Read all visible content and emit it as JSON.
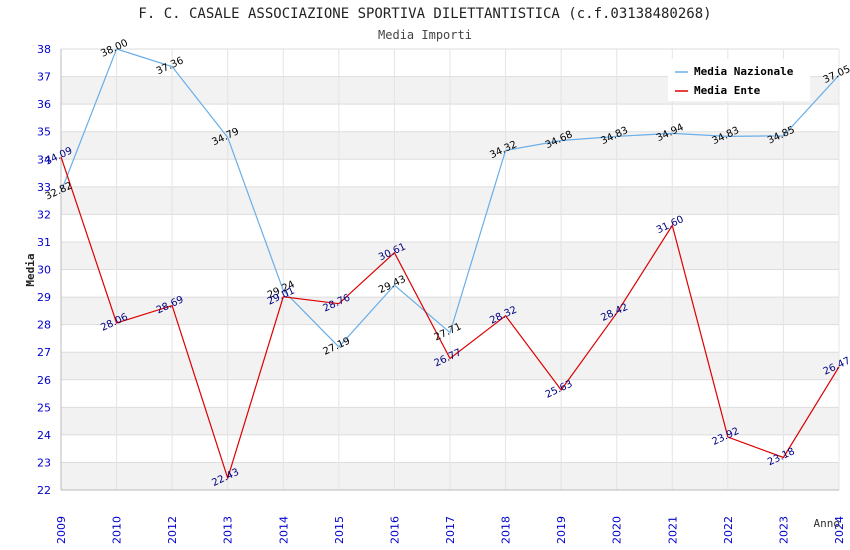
{
  "chart_data": {
    "type": "line",
    "title": "F. C. CASALE ASSOCIAZIONE SPORTIVA DILETTANTISTICA (c.f.03138480268)",
    "subtitle": "Media Importi",
    "xlabel": "Anno",
    "ylabel": "Media",
    "ylim": [
      22,
      38
    ],
    "yticks": [
      "22",
      "23",
      "24",
      "25",
      "26",
      "27",
      "28",
      "29",
      "30",
      "31",
      "32",
      "33",
      "34",
      "35",
      "36",
      "37",
      "38"
    ],
    "categories": [
      "2009",
      "2010",
      "2012",
      "2013",
      "2014",
      "2015",
      "2016",
      "2017",
      "2018",
      "2019",
      "2020",
      "2021",
      "2022",
      "2023",
      "2024"
    ],
    "legend_position": "top-right",
    "series": [
      {
        "name": "Media Nazionale",
        "color": "#6aaee8",
        "values": [
          32.82,
          38.0,
          37.36,
          34.79,
          29.24,
          27.19,
          29.43,
          27.71,
          34.32,
          34.68,
          34.83,
          34.94,
          34.83,
          34.85,
          37.05
        ],
        "labels": [
          "32.82",
          "38.00",
          "37.36",
          "34.79",
          "29.24",
          "27.19",
          "29.43",
          "27.71",
          "34.32",
          "34.68",
          "34.83",
          "34.94",
          "34.83",
          "34.85",
          "37.05"
        ]
      },
      {
        "name": "Media Ente",
        "color": "#dd0000",
        "values": [
          34.09,
          28.06,
          28.69,
          22.43,
          29.01,
          28.76,
          30.61,
          26.77,
          28.32,
          25.63,
          28.42,
          31.6,
          23.92,
          23.18,
          26.47
        ],
        "labels": [
          "34.09",
          "28.06",
          "28.69",
          "22.43",
          "29.01",
          "28.76",
          "30.61",
          "26.77",
          "28.32",
          "25.63",
          "28.42",
          "31.60",
          "23.92",
          "23.18",
          "26.47"
        ]
      }
    ]
  }
}
